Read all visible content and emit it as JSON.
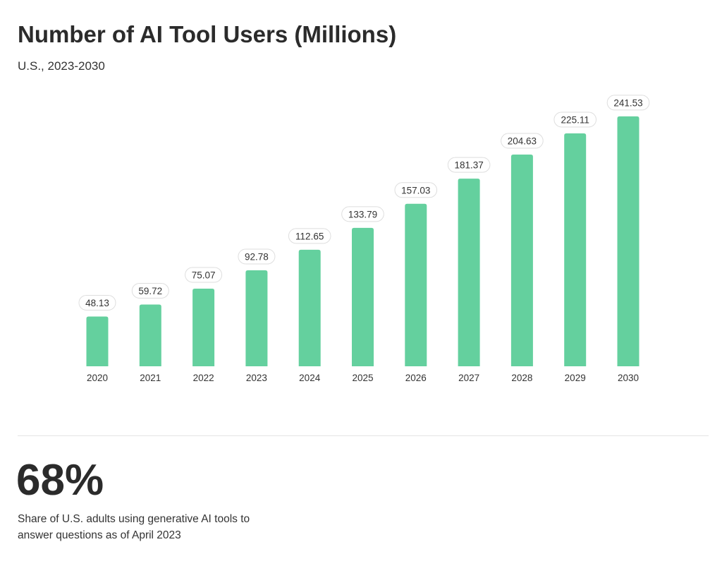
{
  "header": {
    "title": "Number of AI Tool Users (Millions)",
    "subtitle": "U.S., 2023-2030"
  },
  "chart_data": {
    "type": "bar",
    "title": "Number of AI Tool Users (Millions)",
    "subtitle": "U.S., 2023-2030",
    "categories": [
      "2020",
      "2021",
      "2022",
      "2023",
      "2024",
      "2025",
      "2026",
      "2027",
      "2028",
      "2029",
      "2030"
    ],
    "values": [
      48.13,
      59.72,
      75.07,
      92.78,
      112.65,
      133.79,
      157.03,
      181.37,
      204.63,
      225.11,
      241.53
    ],
    "xlabel": "",
    "ylabel": "",
    "grid": false,
    "data_labels": true,
    "bar_color": "#64d09e"
  },
  "stat": {
    "value": "68%",
    "description": "Share of U.S. adults using generative AI tools to answer questions as of April 2023"
  }
}
